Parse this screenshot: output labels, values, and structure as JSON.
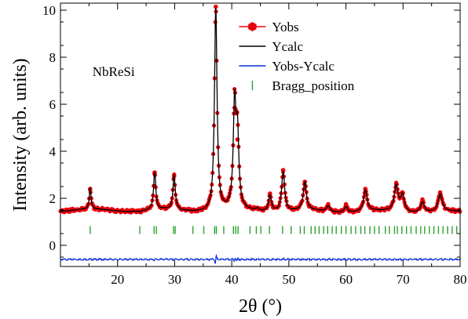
{
  "chart_data": {
    "type": "line",
    "title": "",
    "xlabel": "2θ (°)",
    "ylabel": "Intensity (arb. units)",
    "xlim": [
      10,
      80
    ],
    "ylim": [
      -0.9,
      10.3
    ],
    "x_ticks": [
      20,
      30,
      40,
      50,
      60,
      70,
      80
    ],
    "x_tick_labels": [
      "20",
      "30",
      "40",
      "50",
      "60",
      "70",
      "80"
    ],
    "y_ticks": [
      0,
      2,
      4,
      6,
      8,
      10
    ],
    "y_tick_labels": [
      "0",
      "2",
      "4",
      "6",
      "8",
      "10"
    ],
    "grid": false,
    "legend_position": "top-right",
    "annotation": "NbReSi",
    "background_level": 1.5,
    "difference_offset": -0.6,
    "bragg_marker_level": 0.65,
    "series": [
      {
        "name": "Yobs",
        "color": "#e8000b",
        "marker": "hexagon"
      },
      {
        "name": "Ycalc",
        "color": "#000000"
      },
      {
        "name": "Yobs-Ycalc",
        "color": "#0a2fd6"
      },
      {
        "name": "Bragg_position",
        "color": "#2ca02c",
        "marker": "tick"
      }
    ],
    "peaks": [
      {
        "x": 15.2,
        "y": 2.4
      },
      {
        "x": 23.9,
        "y": 1.45
      },
      {
        "x": 26.5,
        "y": 3.1
      },
      {
        "x": 29.9,
        "y": 2.95
      },
      {
        "x": 37.2,
        "y": 10.15
      },
      {
        "x": 40.5,
        "y": 5.85
      },
      {
        "x": 41.0,
        "y": 4.5
      },
      {
        "x": 44.5,
        "y": 1.6
      },
      {
        "x": 46.7,
        "y": 2.2
      },
      {
        "x": 49.0,
        "y": 3.2
      },
      {
        "x": 52.8,
        "y": 2.7
      },
      {
        "x": 56.9,
        "y": 1.75
      },
      {
        "x": 60.0,
        "y": 1.75
      },
      {
        "x": 63.4,
        "y": 2.4
      },
      {
        "x": 68.8,
        "y": 2.6
      },
      {
        "x": 69.9,
        "y": 2.2
      },
      {
        "x": 73.4,
        "y": 1.95
      },
      {
        "x": 76.5,
        "y": 2.25
      }
    ],
    "bragg_positions": [
      15.2,
      23.9,
      26.4,
      26.8,
      29.8,
      30.1,
      33.2,
      35.1,
      37.0,
      37.3,
      38.6,
      40.3,
      40.7,
      41.1,
      43.2,
      44.3,
      45.1,
      46.6,
      48.9,
      50.4,
      52.0,
      52.7,
      53.9,
      54.6,
      55.3,
      56.1,
      56.8,
      57.6,
      58.3,
      59.2,
      60.0,
      60.9,
      61.7,
      62.6,
      63.3,
      64.2,
      65.0,
      65.8,
      66.9,
      67.6,
      68.5,
      69.0,
      69.8,
      70.6,
      71.4,
      72.3,
      73.1,
      73.8,
      74.6,
      75.4,
      76.2,
      77.0,
      77.8,
      78.6,
      79.4
    ]
  }
}
